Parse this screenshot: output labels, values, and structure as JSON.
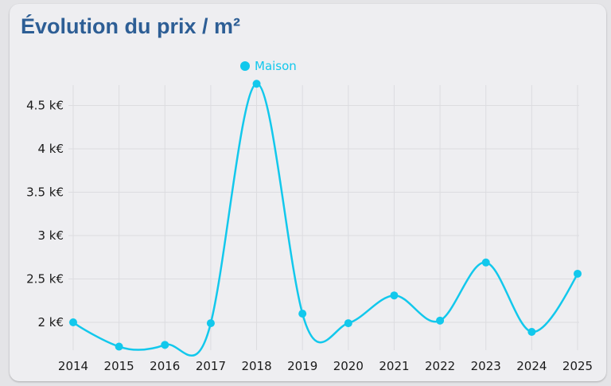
{
  "title": "Évolution du prix / m²",
  "chart_data": {
    "type": "line",
    "title": "Évolution du prix / m²",
    "xlabel": "",
    "ylabel": "",
    "categories": [
      "2014",
      "2015",
      "2016",
      "2017",
      "2018",
      "2019",
      "2020",
      "2021",
      "2022",
      "2023",
      "2024",
      "2025"
    ],
    "series": [
      {
        "name": "Maison",
        "color": "#12c8ec",
        "values": [
          2.0,
          1.72,
          1.74,
          1.99,
          4.75,
          2.1,
          1.99,
          2.31,
          2.02,
          2.69,
          1.89,
          2.56
        ]
      }
    ],
    "y_ticks": [
      {
        "value": 2,
        "label": "2 k€"
      },
      {
        "value": 2.5,
        "label": "2.5 k€"
      },
      {
        "value": 3,
        "label": "3 k€"
      },
      {
        "value": 3.5,
        "label": "3.5 k€"
      },
      {
        "value": 4,
        "label": "4 k€"
      },
      {
        "value": 4.5,
        "label": "4.5 k€"
      }
    ],
    "y_unit": "k€",
    "curve": "smooth",
    "grid": true,
    "legend_position": "top-center"
  }
}
